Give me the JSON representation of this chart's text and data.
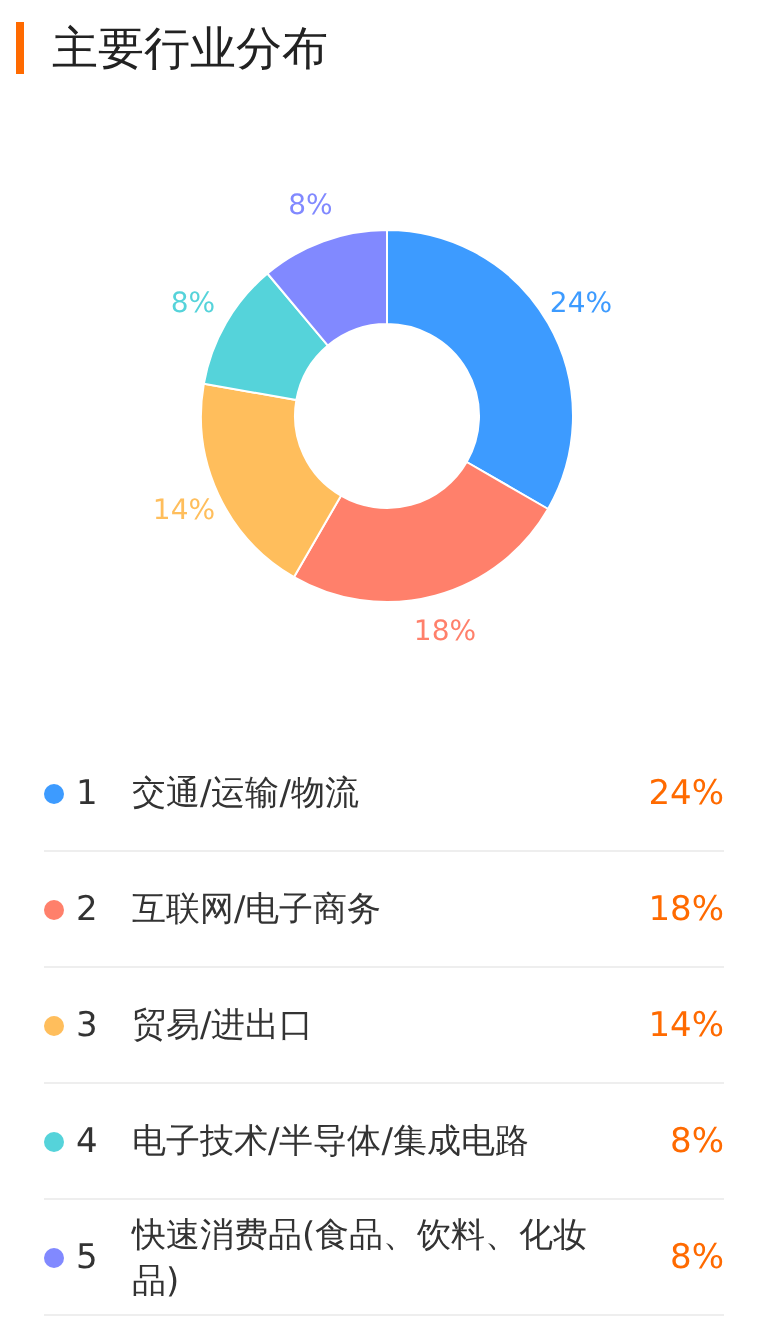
{
  "chart_data": {
    "type": "donut",
    "title": "主要行业分布",
    "categories": [
      "交通/运输/物流",
      "互联网/电子商务",
      "贸易/进出口",
      "电子技术/半导体/集成电路",
      "快速消费品(食品、饮料、化妆品)"
    ],
    "values": [
      24,
      18,
      14,
      8,
      8
    ],
    "value_labels": [
      "24%",
      "18%",
      "14%",
      "8%",
      "8%"
    ],
    "colors": [
      "#3d9bff",
      "#ff806b",
      "#ffbe5c",
      "#55d3da",
      "#8189ff"
    ],
    "legend": "bottom",
    "annotations": [
      "1",
      "2",
      "3",
      "4",
      "5"
    ]
  }
}
